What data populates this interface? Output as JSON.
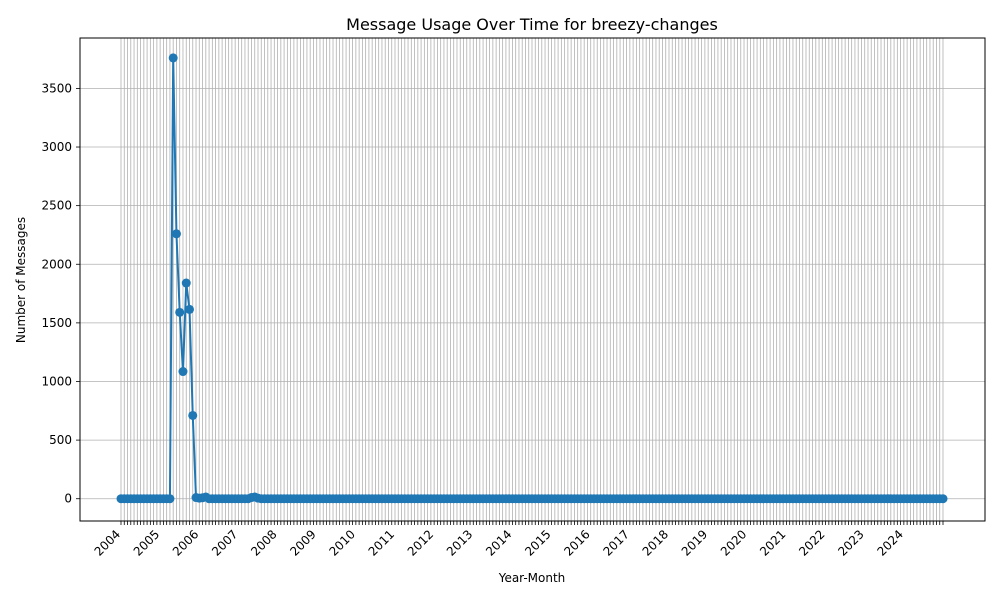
{
  "chart_data": {
    "type": "line",
    "title": "Message Usage Over Time for breezy-changes",
    "xlabel": "Year-Month",
    "ylabel": "Number of Messages",
    "x_start": "2004-01",
    "x_end": "2025-01",
    "ylim": [
      -190,
      3930
    ],
    "yticks": [
      0,
      500,
      1000,
      1500,
      2000,
      2500,
      3000,
      3500
    ],
    "xtick_labels": [
      "2004",
      "2005",
      "2006",
      "2007",
      "2008",
      "2009",
      "2010",
      "2011",
      "2012",
      "2013",
      "2014",
      "2015",
      "2016",
      "2017",
      "2018",
      "2019",
      "2020",
      "2021",
      "2022",
      "2023",
      "2024"
    ],
    "grid": true,
    "marker": "circle",
    "color": "#1f77b4",
    "series": [
      {
        "x": [
          "2004-01",
          "2004-02",
          "2004-03",
          "2004-04",
          "2004-05",
          "2004-06",
          "2004-07",
          "2004-08",
          "2004-09",
          "2004-10",
          "2004-11",
          "2004-12",
          "2005-01",
          "2005-02",
          "2005-03",
          "2005-04",
          "2005-05",
          "2005-06",
          "2005-07",
          "2005-08",
          "2005-09",
          "2005-10",
          "2005-11",
          "2005-12",
          "2006-01",
          "2006-02",
          "2006-03",
          "2006-04",
          "2006-05",
          "2006-06",
          "2006-07",
          "2006-08",
          "2006-09",
          "2006-10",
          "2006-11",
          "2006-12",
          "2007-01",
          "2007-02",
          "2007-03",
          "2007-04",
          "2007-05",
          "2007-06",
          "2007-07"
        ],
        "values": [
          0,
          0,
          0,
          0,
          0,
          0,
          0,
          0,
          0,
          0,
          0,
          0,
          0,
          0,
          0,
          0,
          3760,
          2260,
          1590,
          1085,
          1840,
          1615,
          710,
          10,
          5,
          8,
          15,
          0,
          0,
          0,
          0,
          0,
          0,
          0,
          0,
          0,
          0,
          0,
          0,
          0,
          10,
          15,
          5
        ],
        "rest_value": 0
      }
    ]
  }
}
